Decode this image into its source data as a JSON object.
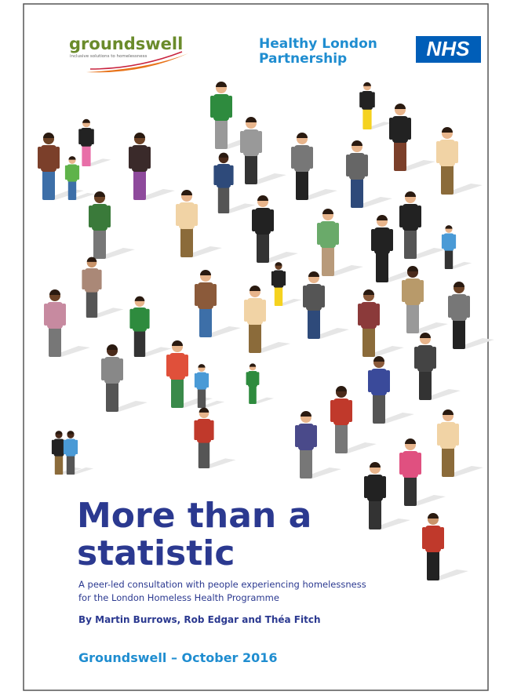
{
  "header": {
    "groundswell": {
      "name": "groundswell",
      "tagline": "inclusive solutions to homelessness"
    },
    "partnership": {
      "lines": [
        "Healthy London",
        "Partnership"
      ]
    },
    "nhs": "NHS"
  },
  "title": {
    "lines": [
      "More than a",
      "statistic"
    ]
  },
  "subtitle": {
    "lines": [
      "A peer-led consultation with people experiencing homelessness",
      "for the London Homeless Health Programme"
    ]
  },
  "authors": "By Martin Burrows, Rob Edgar and Théa Fitch",
  "footer": "Groundswell – October 2016"
}
